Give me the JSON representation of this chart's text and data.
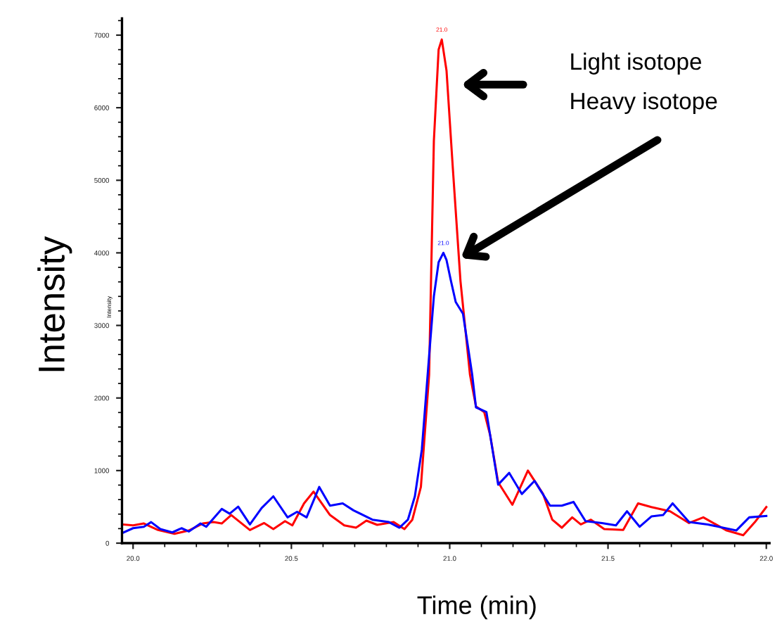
{
  "chart_data": {
    "type": "line",
    "xlabel": "Time (min)",
    "ylabel": "Intensity",
    "xlim": [
      19.965,
      22.01
    ],
    "ylim": [
      0,
      7230
    ],
    "xticks": [
      {
        "value": 20.0,
        "label": "20.0"
      },
      20.5,
      {
        "value": 21.0,
        "label": "21.0"
      },
      21.5,
      {
        "value": 22.0,
        "label": "22.0"
      }
    ],
    "yticks": [
      0,
      1000,
      2000,
      3000,
      4000,
      5000,
      6000,
      7000
    ],
    "grid": false,
    "legend": false,
    "marker": "none",
    "line_style": "solid",
    "series": [
      {
        "color": "#ff0000",
        "x": [
          19.967,
          20.0,
          20.034,
          20.079,
          20.131,
          20.176,
          20.22,
          20.254,
          20.28,
          20.31,
          20.369,
          20.414,
          20.443,
          20.48,
          20.503,
          20.54,
          20.57,
          20.622,
          20.667,
          20.704,
          20.737,
          20.771,
          20.823,
          20.857,
          20.882,
          20.909,
          20.935,
          20.95,
          20.965,
          20.975,
          20.99,
          21.01,
          21.034,
          21.064,
          21.083,
          21.109,
          21.128,
          21.153,
          21.198,
          21.247,
          21.295,
          21.324,
          21.354,
          21.387,
          21.414,
          21.446,
          21.488,
          21.548,
          21.595,
          21.637,
          21.696,
          21.756,
          21.801,
          21.875,
          21.927,
          21.964,
          22.0
        ],
        "values": [
          258,
          245,
          271,
          181,
          129,
          174,
          271,
          290,
          271,
          387,
          181,
          277,
          194,
          303,
          245,
          548,
          710,
          387,
          245,
          213,
          310,
          252,
          290,
          194,
          323,
          774,
          2320,
          5540,
          6800,
          6940,
          6510,
          5160,
          3613,
          2323,
          1884,
          1806,
          1484,
          839,
          529,
          1000,
          677,
          323,
          213,
          355,
          258,
          323,
          194,
          181,
          548,
          497,
          439,
          277,
          355,
          174,
          110,
          290,
          497
        ]
      },
      {
        "color": "#0000ff",
        "x": [
          19.967,
          20.0,
          20.034,
          20.057,
          20.086,
          20.124,
          20.153,
          20.176,
          20.213,
          20.231,
          20.28,
          20.305,
          20.332,
          20.369,
          20.406,
          20.443,
          20.488,
          20.518,
          20.548,
          20.588,
          20.622,
          20.662,
          20.696,
          20.756,
          20.808,
          20.841,
          20.868,
          20.89,
          20.912,
          20.935,
          20.95,
          20.965,
          20.98,
          20.99,
          21.004,
          21.019,
          21.042,
          21.071,
          21.083,
          21.116,
          21.153,
          21.188,
          21.228,
          21.268,
          21.317,
          21.354,
          21.391,
          21.429,
          21.481,
          21.525,
          21.56,
          21.6,
          21.637,
          21.674,
          21.704,
          21.756,
          21.815,
          21.905,
          21.946,
          22.0
        ],
        "values": [
          142,
          206,
          226,
          290,
          194,
          148,
          206,
          161,
          271,
          226,
          471,
          406,
          503,
          258,
          484,
          645,
          355,
          432,
          355,
          774,
          516,
          548,
          452,
          323,
          290,
          213,
          323,
          645,
          1290,
          2580,
          3400,
          3870,
          4000,
          3900,
          3613,
          3323,
          3161,
          2323,
          1871,
          1806,
          806,
          968,
          677,
          858,
          516,
          516,
          568,
          303,
          277,
          245,
          439,
          226,
          368,
          387,
          548,
          290,
          258,
          174,
          355,
          374
        ]
      }
    ],
    "annotations": [
      {
        "text": "21.0",
        "x": 20.975,
        "y": 6940
      },
      {
        "text": "21.0",
        "x": 20.98,
        "y": 4000
      },
      "Light isotope",
      "Heavy isotope",
      "Intensity"
    ]
  }
}
